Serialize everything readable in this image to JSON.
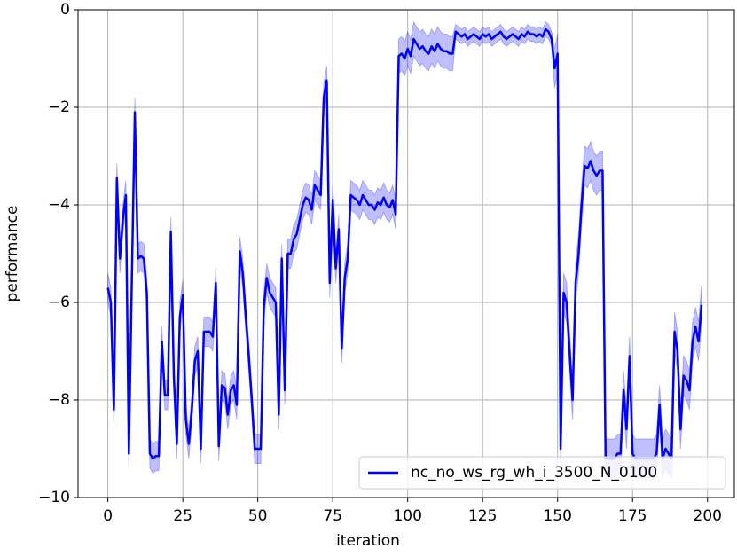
{
  "chart_data": {
    "type": "line",
    "xlabel": "iteration",
    "ylabel": "performance",
    "xlim": [
      -9.95,
      208.95
    ],
    "ylim": [
      -10,
      0
    ],
    "xticks": [
      0,
      25,
      50,
      75,
      100,
      125,
      150,
      175,
      200
    ],
    "yticks": [
      {
        "value": -10,
        "label": "−10"
      },
      {
        "value": -8,
        "label": "−8"
      },
      {
        "value": -6,
        "label": "−6"
      },
      {
        "value": -4,
        "label": "−4"
      },
      {
        "value": -2,
        "label": "−2"
      },
      0
    ],
    "grid": true,
    "legend": "lower right",
    "x": [
      0,
      1,
      2,
      3,
      4,
      5,
      6,
      7,
      8,
      9,
      10,
      11,
      12,
      13,
      14,
      15,
      16,
      17,
      18,
      19,
      20,
      21,
      22,
      23,
      24,
      25,
      26,
      27,
      28,
      29,
      30,
      31,
      32,
      33,
      34,
      35,
      36,
      37,
      38,
      39,
      40,
      41,
      42,
      43,
      44,
      45,
      46,
      47,
      48,
      49,
      50,
      51,
      52,
      53,
      54,
      55,
      56,
      57,
      58,
      59,
      60,
      61,
      62,
      63,
      64,
      65,
      66,
      67,
      68,
      69,
      70,
      71,
      72,
      73,
      74,
      75,
      76,
      77,
      78,
      79,
      80,
      81,
      82,
      83,
      84,
      85,
      86,
      87,
      88,
      89,
      90,
      91,
      92,
      93,
      94,
      95,
      96,
      97,
      98,
      99,
      100,
      101,
      102,
      103,
      104,
      105,
      106,
      107,
      108,
      109,
      110,
      111,
      112,
      113,
      114,
      115,
      116,
      117,
      118,
      119,
      120,
      121,
      122,
      123,
      124,
      125,
      126,
      127,
      128,
      129,
      130,
      131,
      132,
      133,
      134,
      135,
      136,
      137,
      138,
      139,
      140,
      141,
      142,
      143,
      144,
      145,
      146,
      147,
      148,
      149,
      150,
      151,
      152,
      153,
      154,
      155,
      156,
      157,
      158,
      159,
      160,
      161,
      162,
      163,
      164,
      165,
      166,
      167,
      168,
      169,
      170,
      171,
      172,
      173,
      174,
      175,
      176,
      177,
      178,
      179,
      180,
      181,
      182,
      183,
      184,
      185,
      186,
      187,
      188,
      189,
      190,
      191,
      192,
      193,
      194,
      195,
      196,
      197,
      198
    ],
    "series": [
      {
        "name": "nc_no_ws_rg_wh_i_3500_N_0100",
        "color": "#0000ff",
        "values": [
          -5.7,
          -6.0,
          -8.2,
          -3.45,
          -5.1,
          -4.3,
          -3.8,
          -9.1,
          -5.5,
          -2.1,
          -5.1,
          -5.05,
          -5.1,
          -5.8,
          -9.1,
          -9.2,
          -9.15,
          -9.15,
          -6.8,
          -7.9,
          -7.9,
          -4.55,
          -7.5,
          -8.9,
          -6.3,
          -5.85,
          -8.4,
          -8.9,
          -8.2,
          -7.2,
          -7.0,
          -9.0,
          -6.6,
          -6.6,
          -6.6,
          -6.7,
          -5.6,
          -8.95,
          -7.7,
          -7.75,
          -8.3,
          -7.8,
          -7.7,
          -8.1,
          -4.95,
          -5.4,
          -6.3,
          -7.1,
          -8.0,
          -9.0,
          -9.0,
          -9.0,
          -6.1,
          -5.5,
          -5.8,
          -5.9,
          -6.0,
          -8.3,
          -5.1,
          -7.8,
          -5.0,
          -5.0,
          -4.7,
          -4.6,
          -4.3,
          -4.0,
          -3.85,
          -3.9,
          -4.1,
          -3.6,
          -3.7,
          -3.8,
          -1.8,
          -1.45,
          -5.6,
          -3.9,
          -5.3,
          -4.5,
          -6.95,
          -5.5,
          -5.1,
          -3.8,
          -3.85,
          -3.9,
          -4.0,
          -3.8,
          -3.9,
          -4.0,
          -4.0,
          -4.1,
          -3.95,
          -4.0,
          -3.85,
          -4.0,
          -4.05,
          -3.9,
          -4.2,
          -0.95,
          -0.9,
          -1.0,
          -0.8,
          -0.95,
          -0.6,
          -0.7,
          -0.8,
          -0.75,
          -0.85,
          -0.9,
          -0.75,
          -0.85,
          -0.7,
          -0.8,
          -0.85,
          -0.85,
          -0.9,
          -0.9,
          -0.45,
          -0.5,
          -0.55,
          -0.5,
          -0.6,
          -0.55,
          -0.5,
          -0.55,
          -0.6,
          -0.5,
          -0.55,
          -0.5,
          -0.6,
          -0.55,
          -0.5,
          -0.45,
          -0.55,
          -0.6,
          -0.55,
          -0.5,
          -0.55,
          -0.6,
          -0.5,
          -0.55,
          -0.45,
          -0.5,
          -0.5,
          -0.55,
          -0.5,
          -0.55,
          -0.4,
          -0.45,
          -0.6,
          -1.2,
          -0.9,
          -9.0,
          -5.8,
          -6.0,
          -7.0,
          -8.0,
          -5.6,
          -5.0,
          -4.0,
          -3.2,
          -3.25,
          -3.1,
          -3.3,
          -3.4,
          -3.3,
          -3.3,
          -9.2,
          -9.2,
          -9.2,
          -9.2,
          -9.1,
          -9.1,
          -7.8,
          -8.6,
          -7.1,
          -9.1,
          -9.2,
          -9.2,
          -9.2,
          -9.2,
          -9.2,
          -9.2,
          -9.2,
          -9.1,
          -8.1,
          -9.2,
          -9.0,
          -9.1,
          -9.2,
          -6.6,
          -7.0,
          -8.6,
          -7.5,
          -7.6,
          -7.8,
          -6.8,
          -6.5,
          -6.8,
          -6.05
        ],
        "errors": [
          0.3,
          0.3,
          0.3,
          0.3,
          0.3,
          0.3,
          0.3,
          0.3,
          0.3,
          0.3,
          0.3,
          0.3,
          0.3,
          0.3,
          0.3,
          0.3,
          0.3,
          0.3,
          0.3,
          0.3,
          0.3,
          0.3,
          0.3,
          0.3,
          0.3,
          0.3,
          0.3,
          0.3,
          0.3,
          0.3,
          0.3,
          0.3,
          0.3,
          0.3,
          0.3,
          0.3,
          0.3,
          0.3,
          0.3,
          0.3,
          0.3,
          0.3,
          0.3,
          0.3,
          0.3,
          0.3,
          0.3,
          0.3,
          0.3,
          0.3,
          0.3,
          0.3,
          0.3,
          0.3,
          0.3,
          0.3,
          0.3,
          0.3,
          0.3,
          0.3,
          0.3,
          0.3,
          0.3,
          0.3,
          0.3,
          0.3,
          0.3,
          0.3,
          0.3,
          0.3,
          0.3,
          0.3,
          0.3,
          0.3,
          0.3,
          0.3,
          0.3,
          0.3,
          0.3,
          0.3,
          0.3,
          0.3,
          0.3,
          0.3,
          0.3,
          0.3,
          0.3,
          0.3,
          0.3,
          0.3,
          0.3,
          0.3,
          0.3,
          0.3,
          0.3,
          0.3,
          0.3,
          0.35,
          0.35,
          0.35,
          0.35,
          0.35,
          0.35,
          0.35,
          0.35,
          0.35,
          0.35,
          0.35,
          0.35,
          0.35,
          0.35,
          0.35,
          0.35,
          0.35,
          0.35,
          0.35,
          0.15,
          0.15,
          0.15,
          0.15,
          0.15,
          0.15,
          0.15,
          0.15,
          0.15,
          0.15,
          0.15,
          0.15,
          0.15,
          0.15,
          0.15,
          0.15,
          0.15,
          0.15,
          0.15,
          0.15,
          0.15,
          0.15,
          0.15,
          0.15,
          0.15,
          0.15,
          0.15,
          0.15,
          0.15,
          0.15,
          0.15,
          0.15,
          0.15,
          0.4,
          0.4,
          0.4,
          0.4,
          0.4,
          0.4,
          0.4,
          0.4,
          0.4,
          0.4,
          0.4,
          0.4,
          0.4,
          0.4,
          0.4,
          0.4,
          0.4,
          0.4,
          0.4,
          0.4,
          0.4,
          0.4,
          0.4,
          0.4,
          0.4,
          0.4,
          0.4,
          0.4,
          0.4,
          0.4,
          0.4,
          0.4,
          0.4,
          0.4,
          0.4,
          0.4,
          0.4,
          0.4,
          0.4,
          0.4,
          0.4,
          0.4,
          0.4,
          0.4,
          0.4,
          0.4,
          0.4,
          0.4,
          0.4,
          0.4
        ]
      }
    ]
  }
}
